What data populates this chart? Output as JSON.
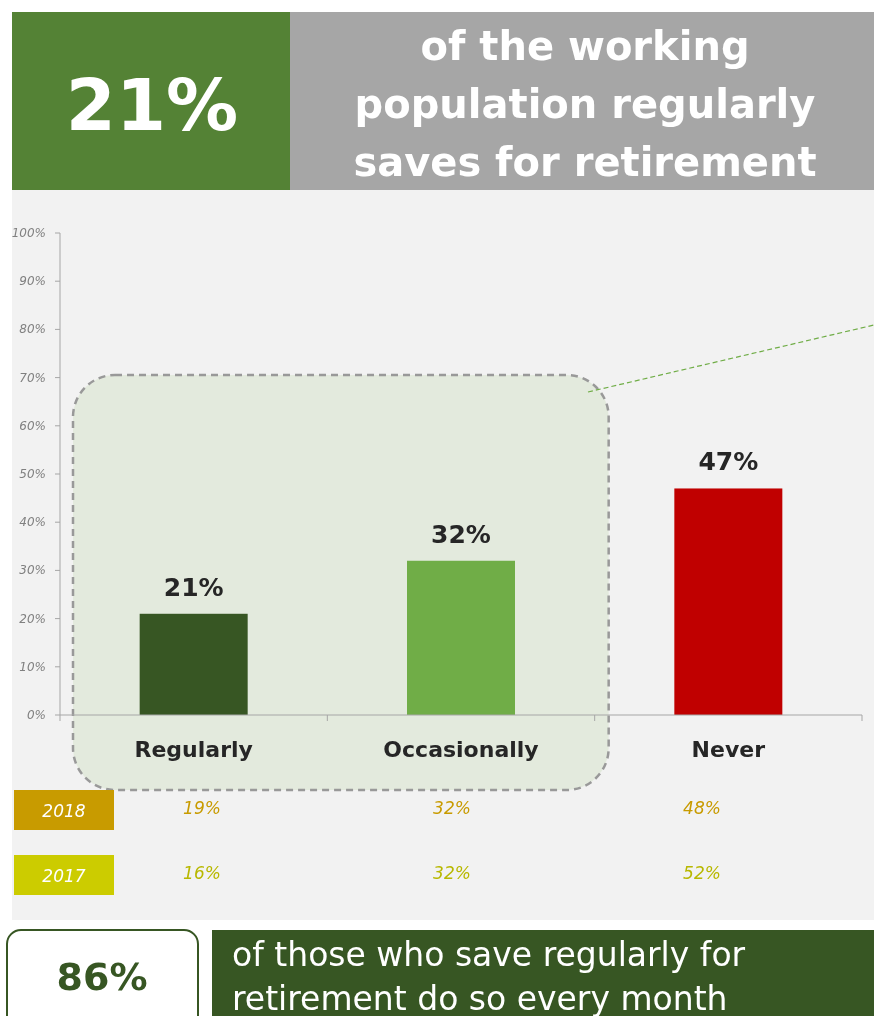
{
  "chart_data": {
    "type": "bar",
    "title": "21%",
    "subtitle": "of the working population regularly saves for retirement",
    "categories": [
      "Regularly",
      "Occasionally",
      "Never"
    ],
    "values": [
      21,
      32,
      47
    ],
    "colors": [
      "#375623",
      "#70ad47",
      "#c00000"
    ],
    "value_labels": [
      "21%",
      "32%",
      "47%"
    ],
    "bands": [
      {
        "axis": "x",
        "from": "Regularly",
        "to": "Occasionally",
        "color": "#e3eadd"
      }
    ],
    "ylim": [
      0,
      100
    ],
    "yticks": [
      {
        "value": 0,
        "label": "0%"
      },
      {
        "value": 10,
        "label": "10%"
      },
      {
        "value": 20,
        "label": "20%"
      },
      {
        "value": 30,
        "label": "30%"
      },
      {
        "value": 40,
        "label": "40%"
      },
      {
        "value": 50,
        "label": "50%"
      },
      {
        "value": 60,
        "label": "60%"
      },
      {
        "value": 70,
        "label": "70%"
      },
      {
        "value": 80,
        "label": "80%"
      },
      {
        "value": 90,
        "label": "90%"
      },
      {
        "value": 100,
        "label": "100%"
      }
    ],
    "annotations": [
      "2018",
      "19%",
      "32%",
      "48%",
      "2017",
      "16%",
      "32%",
      "52%",
      "86%",
      "of those who save regularly for retirement do so every month"
    ]
  }
}
